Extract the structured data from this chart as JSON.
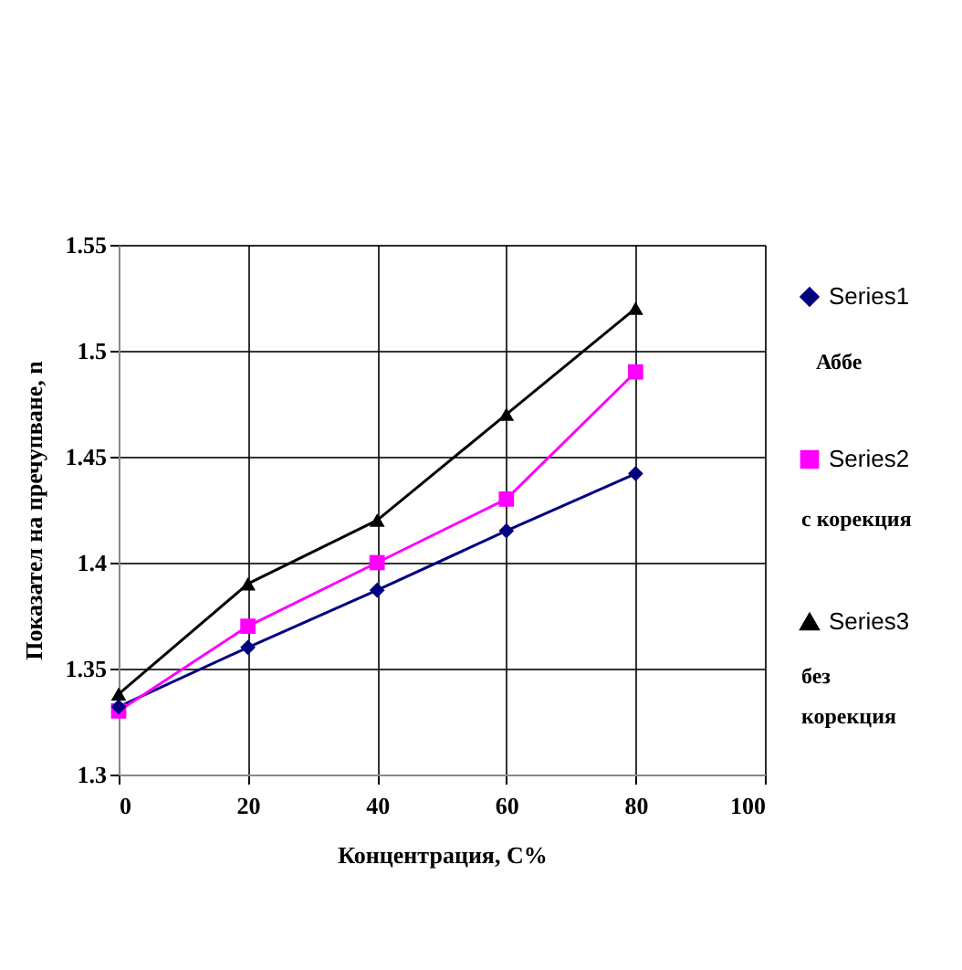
{
  "chart_data": {
    "type": "line",
    "xlabel": "Концентрация, С%",
    "ylabel": "Показател на пречупване, n",
    "x": [
      0,
      20,
      40,
      60,
      80
    ],
    "series": [
      {
        "name": "Series1",
        "color": "#000080",
        "marker": "diamond",
        "values": [
          1.332,
          1.36,
          1.387,
          1.415,
          1.442
        ]
      },
      {
        "name": "Series2",
        "color": "#ff00ff",
        "marker": "square",
        "values": [
          1.33,
          1.37,
          1.4,
          1.43,
          1.49
        ]
      },
      {
        "name": "Series3",
        "color": "#000000",
        "marker": "triangle",
        "values": [
          1.338,
          1.39,
          1.42,
          1.47,
          1.52
        ]
      }
    ],
    "annotations": [
      "Аббе",
      "с корекция",
      "без корекция"
    ],
    "xlim": [
      0,
      100
    ],
    "xticks": [
      0,
      20,
      40,
      60,
      80,
      100
    ],
    "ylim": [
      1.3,
      1.55
    ],
    "yticks": [
      1.3,
      1.35,
      1.4,
      1.45,
      1.5,
      1.55
    ],
    "grid": true,
    "legend": "right",
    "line_style": "solid"
  }
}
